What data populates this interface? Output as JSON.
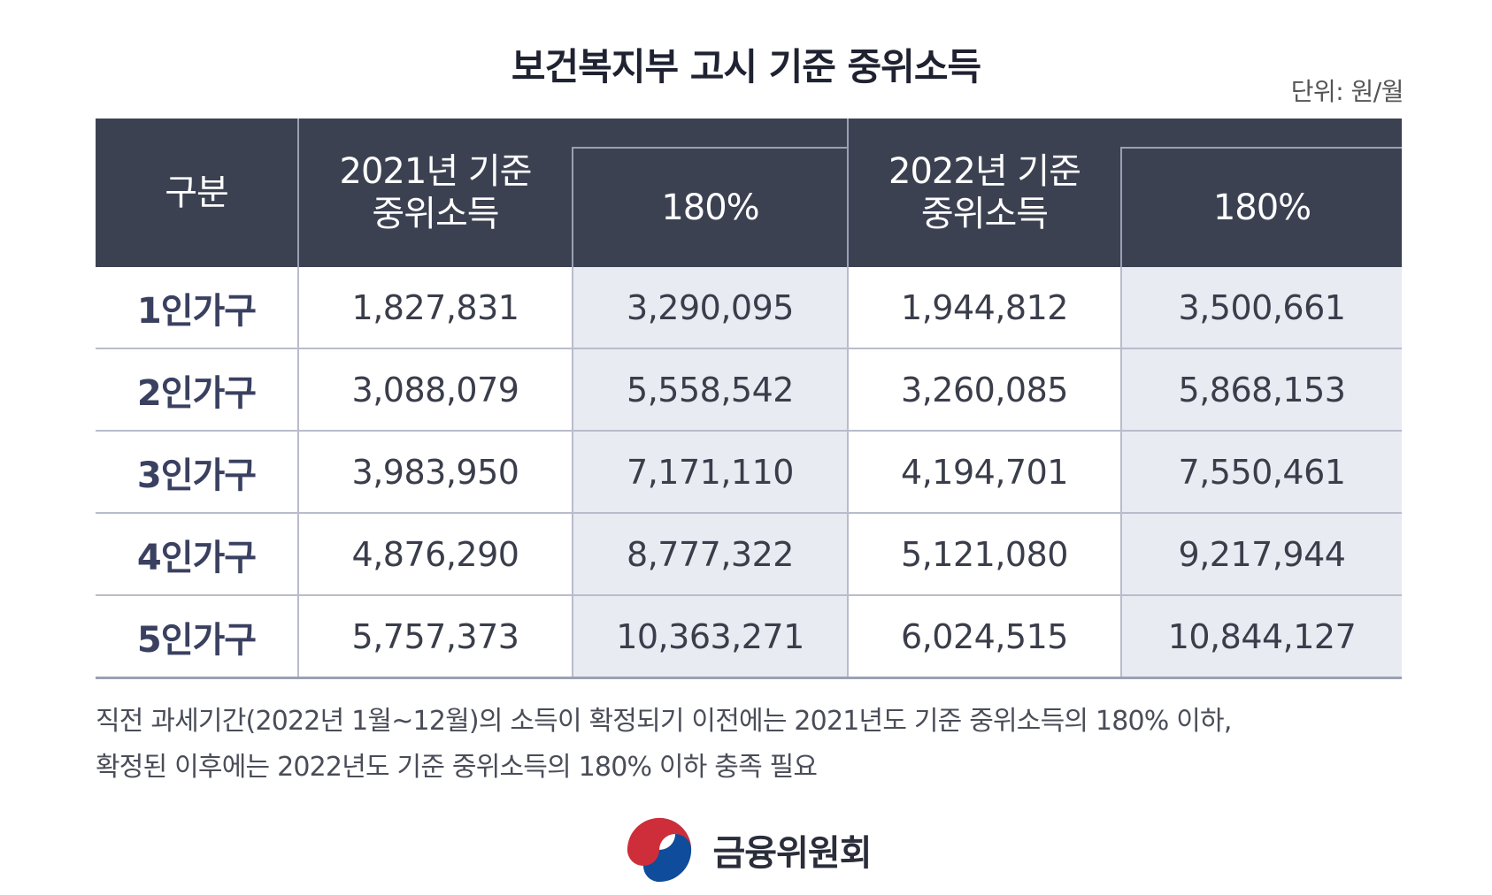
{
  "title": "보건복지부 고시 기준 중위소득",
  "unit": "단위: 원/월",
  "table": {
    "header_row_label": "구분",
    "group_2021": [
      "2021년 기준",
      "중위소득"
    ],
    "group_2022": [
      "2022년 기준",
      "중위소득"
    ],
    "pct_label_2021": "180%",
    "pct_label_2022": "180%",
    "rows": [
      {
        "label": "1인가구",
        "v2021": "1,827,831",
        "p2021": "3,290,095",
        "v2022": "1,944,812",
        "p2022": "3,500,661"
      },
      {
        "label": "2인가구",
        "v2021": "3,088,079",
        "p2021": "5,558,542",
        "v2022": "3,260,085",
        "p2022": "5,868,153"
      },
      {
        "label": "3인가구",
        "v2021": "3,983,950",
        "p2021": "7,171,110",
        "v2022": "4,194,701",
        "p2022": "7,550,461"
      },
      {
        "label": "4인가구",
        "v2021": "4,876,290",
        "p2021": "8,777,322",
        "v2022": "5,121,080",
        "p2022": "9,217,944"
      },
      {
        "label": "5인가구",
        "v2021": "5,757,373",
        "p2021": "10,363,271",
        "v2022": "6,024,515",
        "p2022": "10,844,127"
      }
    ]
  },
  "note_lines": [
    "직전 과세기간(2022년 1월~12월)의 소득이 확정되기 이전에는 2021년도 기준 중위소득의 180% 이하,",
    "확정된 이후에는 2022년도 기준 중위소득의 180% 이하 충족 필요"
  ],
  "footer": {
    "logo_icon": "taegeuk-icon",
    "org_name": "금융위원회"
  },
  "colors": {
    "header_bg": "#3c4152",
    "pct_col_bg": "#e8ebf1",
    "logo_red": "#cd2e3a",
    "logo_blue": "#0f4c9b"
  },
  "chart_data": {
    "type": "table",
    "title": "보건복지부 고시 기준 중위소득",
    "unit": "단위: 원/월",
    "columns": [
      "구분",
      "2021년 기준 중위소득",
      "180%",
      "2022년 기준 중위소득",
      "180%"
    ],
    "rows": [
      [
        "1인가구",
        1827831,
        3290095,
        1944812,
        3500661
      ],
      [
        "2인가구",
        3088079,
        5558542,
        3260085,
        5868153
      ],
      [
        "3인가구",
        3983950,
        7171110,
        4194701,
        7550461
      ],
      [
        "4인가구",
        4876290,
        8777322,
        5121080,
        9217944
      ],
      [
        "5인가구",
        5757373,
        10363271,
        6024515,
        10844127
      ]
    ]
  }
}
